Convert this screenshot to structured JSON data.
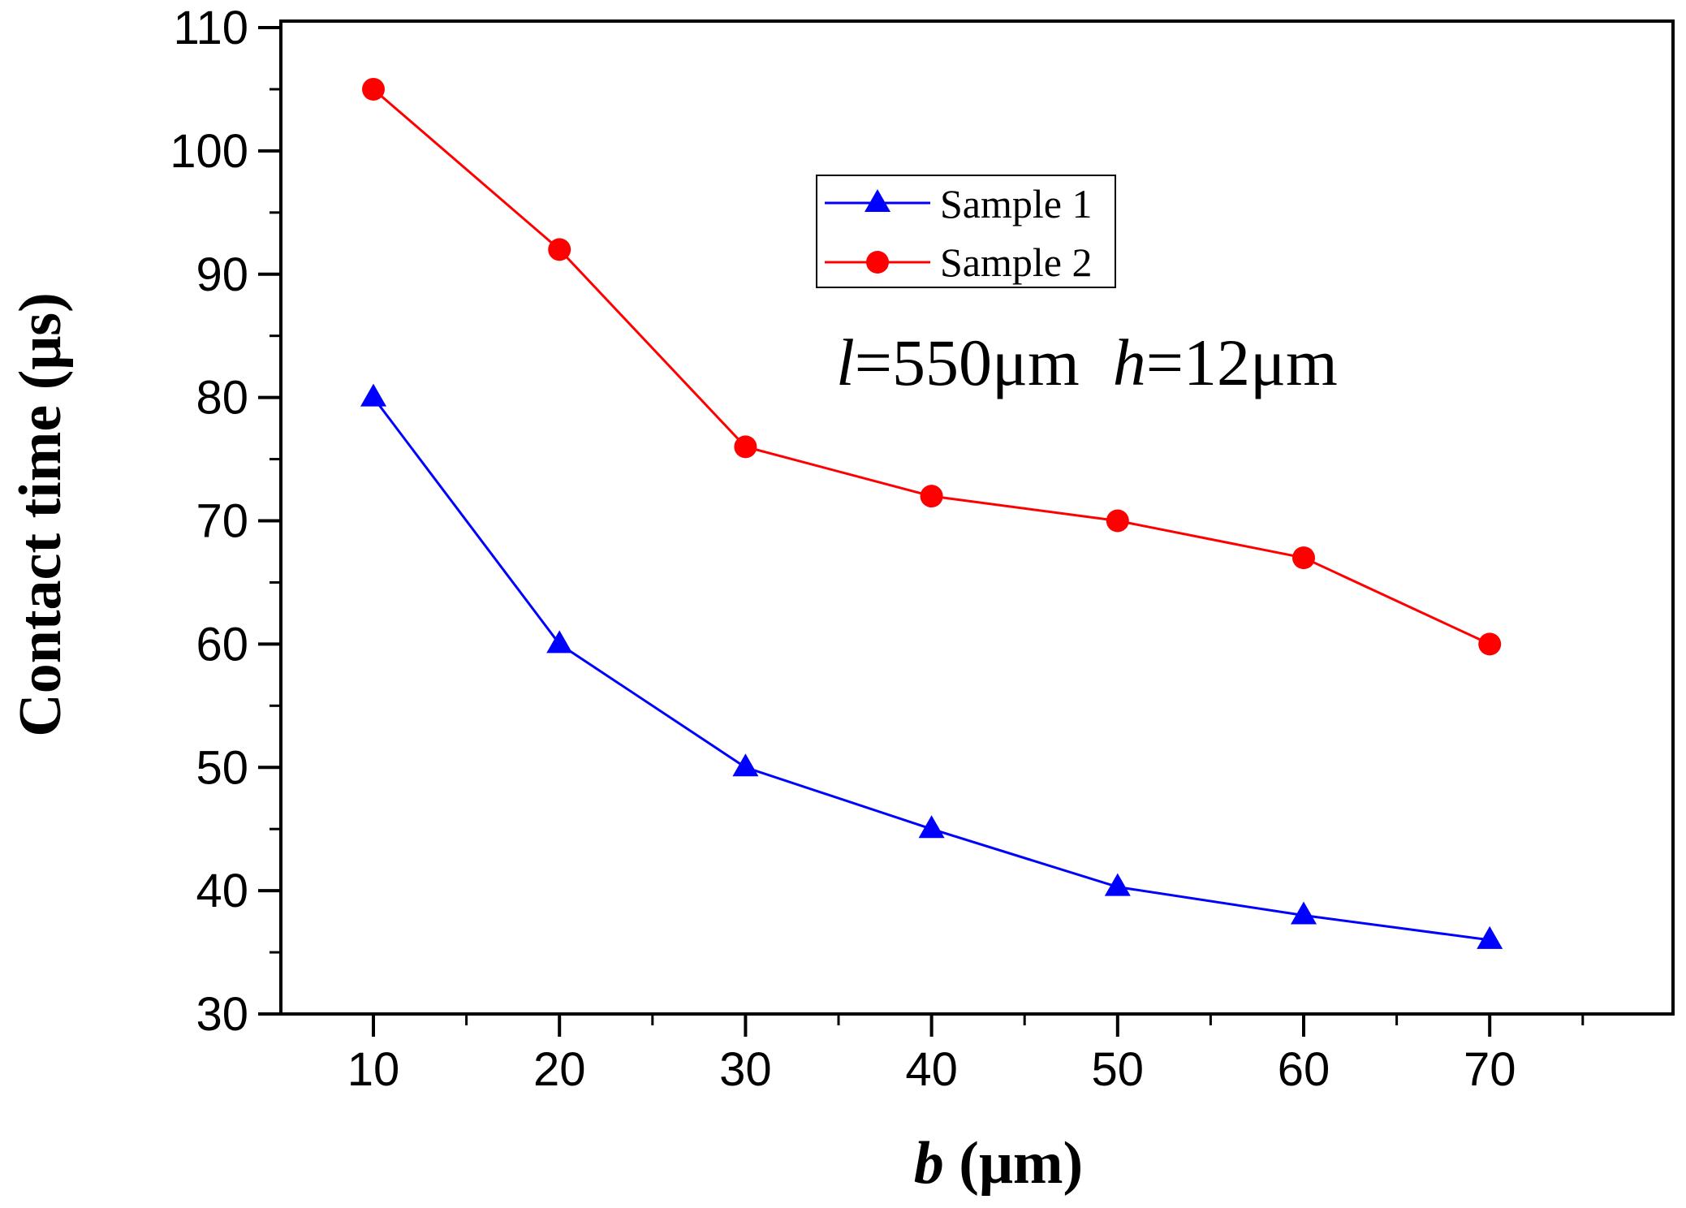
{
  "chart_data": {
    "type": "line",
    "xlabel": {
      "var": "b",
      "unit": " (μm)"
    },
    "ylabel": "Contact time  (μs)",
    "xlim": [
      5,
      77
    ],
    "ylim": [
      30,
      110
    ],
    "xticks": [
      10,
      20,
      30,
      40,
      50,
      60,
      70
    ],
    "yticks": [
      30,
      40,
      50,
      60,
      70,
      80,
      90,
      100,
      110
    ],
    "x": [
      10,
      20,
      30,
      40,
      50,
      60,
      70
    ],
    "series": [
      {
        "name": "Sample 1",
        "color": "#0000ff",
        "marker": "triangle",
        "values": [
          80,
          60,
          50,
          45,
          40.3,
          38,
          36
        ]
      },
      {
        "name": "Sample 2",
        "color": "#ff0000",
        "marker": "circle",
        "values": [
          105,
          92,
          76,
          72,
          70,
          67,
          60
        ]
      }
    ],
    "annotation": [
      {
        "text": "l",
        "italic": true
      },
      {
        "text": "=550μm  "
      },
      {
        "text": "h",
        "italic": true
      },
      {
        "text": "=12μm"
      }
    ],
    "legend_position": "upper-middle",
    "grid": false
  }
}
